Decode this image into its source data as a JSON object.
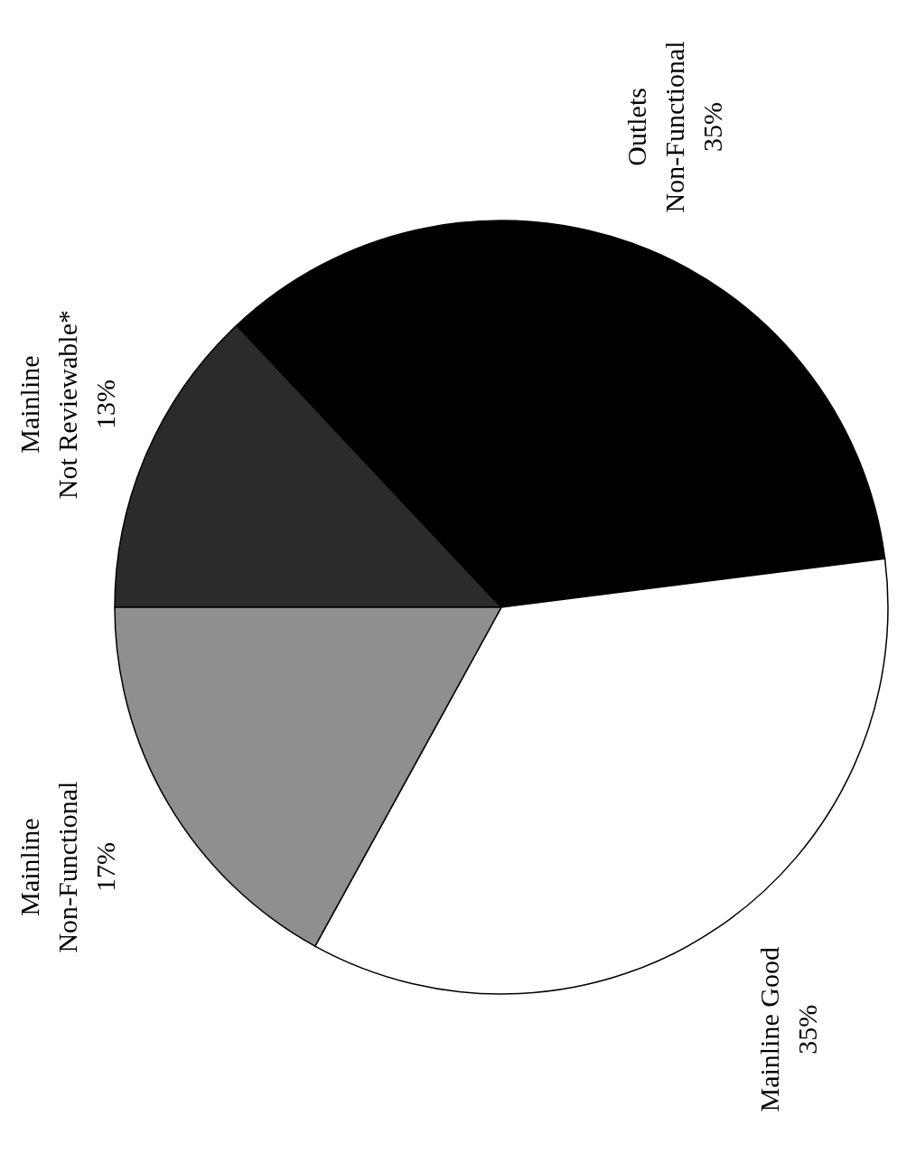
{
  "chart_data": {
    "type": "pie",
    "categories": [
      "Mainline Not Reviewable*",
      "Outlets Non-Functional",
      "Mainline Good",
      "Mainline Non-Functional"
    ],
    "values": [
      13,
      35,
      35,
      17
    ],
    "value_labels": [
      "13%",
      "35%",
      "35%",
      "17%"
    ],
    "colors": [
      "#2b2b2b",
      "#000000",
      "#ffffff",
      "#8f8f8f"
    ]
  }
}
